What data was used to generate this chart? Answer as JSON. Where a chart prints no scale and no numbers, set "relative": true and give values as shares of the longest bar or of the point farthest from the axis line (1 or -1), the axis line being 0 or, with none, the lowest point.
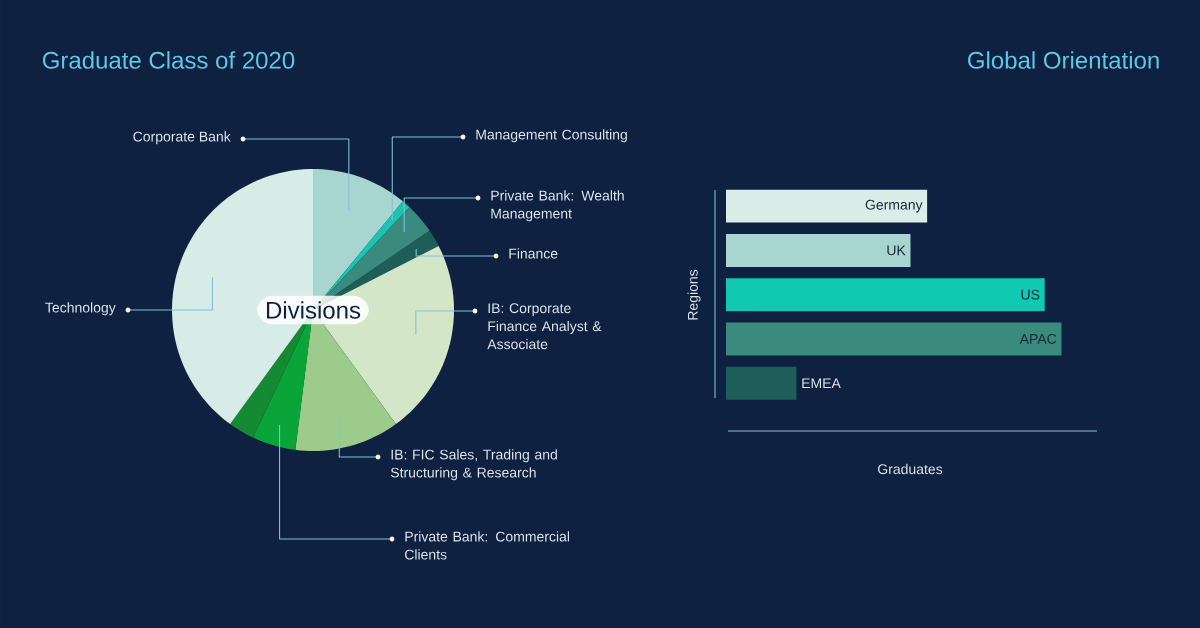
{
  "chart_data": [
    {
      "type": "pie",
      "title": "Graduate Class of 2020",
      "subtitle": "Divisions",
      "categories": [
        "Corporate Bank",
        "Management Consulting",
        "Private Bank: Wealth Management",
        "Finance",
        "IB: Corporate Finance Analyst & Associate",
        "IB: FIC Sales, Trading and Structuring & Research",
        "Private Bank: Commercial Clients",
        null,
        "Technology"
      ],
      "values": [
        11,
        1,
        3.5,
        2,
        22.5,
        12,
        5,
        3,
        40
      ],
      "colors": [
        "#a8d5cf",
        "#19c5b0",
        "#3a8a7e",
        "#1e5e58",
        "#d4e6c8",
        "#9ccb8c",
        "#0aa538",
        "#148a32",
        "#d7ece6"
      ]
    },
    {
      "type": "bar",
      "title": "Global Orientation",
      "orientation": "horizontal",
      "relative": true,
      "xlabel": "Graduates",
      "ylabel": "Regions",
      "categories": [
        "Germany",
        "UK",
        "US",
        "APAC",
        "EMEA"
      ],
      "values": [
        0.6,
        0.55,
        0.95,
        1,
        0.21
      ],
      "colors": [
        "#dcece8",
        "#a8d5cf",
        "#0fc9b0",
        "#3a8a7e",
        "#1e5e58"
      ]
    }
  ]
}
